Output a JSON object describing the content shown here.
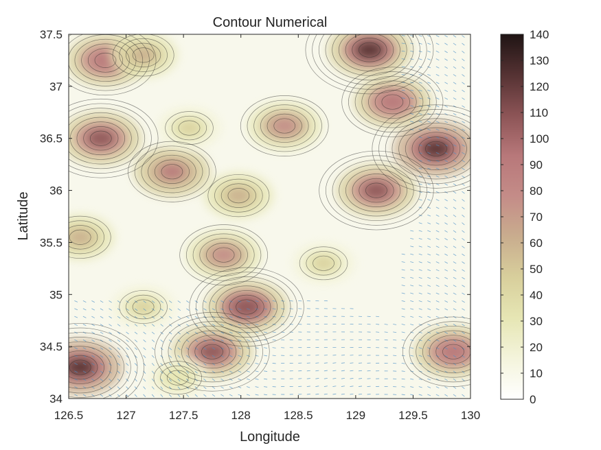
{
  "chart_data": {
    "type": "heatmap",
    "title": "Contour Numerical",
    "xlabel": "Longitude",
    "ylabel": "Latitude",
    "xlim": [
      126.5,
      130
    ],
    "ylim": [
      34,
      37.5
    ],
    "x_ticks": [
      126.5,
      127,
      127.5,
      128,
      128.5,
      129,
      129.5,
      130
    ],
    "x_tick_labels": [
      "126.5",
      "127",
      "127.5",
      "128",
      "128.5",
      "129",
      "129.5",
      "130"
    ],
    "y_ticks": [
      34,
      34.5,
      35,
      35.5,
      36,
      36.5,
      37,
      37.5
    ],
    "y_tick_labels": [
      "34",
      "34.5",
      "35",
      "35.5",
      "36",
      "36.5",
      "37",
      "37.5"
    ],
    "colorbar": {
      "range": [
        0,
        140
      ],
      "ticks": [
        0,
        10,
        20,
        30,
        40,
        50,
        60,
        70,
        80,
        90,
        100,
        110,
        120,
        130,
        140
      ],
      "tick_labels": [
        "0",
        "10",
        "20",
        "30",
        "40",
        "50",
        "60",
        "70",
        "80",
        "90",
        "100",
        "110",
        "120",
        "130",
        "140"
      ],
      "colormap": [
        "#ffffff",
        "#f4f4dc",
        "#e6e6b4",
        "#d8cf9c",
        "#c9ad8e",
        "#c48c88",
        "#b8787a",
        "#8c5456",
        "#553233",
        "#1f1414"
      ]
    },
    "hotspots": [
      {
        "lon": 126.82,
        "lat": 37.25,
        "value": 100
      },
      {
        "lon": 126.78,
        "lat": 36.5,
        "value": 110
      },
      {
        "lon": 127.4,
        "lat": 36.18,
        "value": 90
      },
      {
        "lon": 128.38,
        "lat": 36.62,
        "value": 80
      },
      {
        "lon": 127.98,
        "lat": 35.95,
        "value": 60
      },
      {
        "lon": 127.85,
        "lat": 35.38,
        "value": 85
      },
      {
        "lon": 128.05,
        "lat": 34.88,
        "value": 115
      },
      {
        "lon": 127.75,
        "lat": 34.45,
        "value": 110
      },
      {
        "lon": 126.6,
        "lat": 34.3,
        "value": 125
      },
      {
        "lon": 129.18,
        "lat": 36.0,
        "value": 105
      },
      {
        "lon": 129.7,
        "lat": 36.4,
        "value": 125
      },
      {
        "lon": 129.12,
        "lat": 37.35,
        "value": 120
      },
      {
        "lon": 129.32,
        "lat": 36.85,
        "value": 95
      },
      {
        "lon": 129.85,
        "lat": 34.45,
        "value": 100
      },
      {
        "lon": 127.15,
        "lat": 34.88,
        "value": 45
      },
      {
        "lon": 127.15,
        "lat": 37.3,
        "value": 55
      },
      {
        "lon": 127.55,
        "lat": 36.6,
        "value": 45
      },
      {
        "lon": 128.72,
        "lat": 35.3,
        "value": 40
      },
      {
        "lon": 126.6,
        "lat": 35.55,
        "value": 55
      },
      {
        "lon": 127.45,
        "lat": 34.2,
        "value": 35
      }
    ]
  }
}
